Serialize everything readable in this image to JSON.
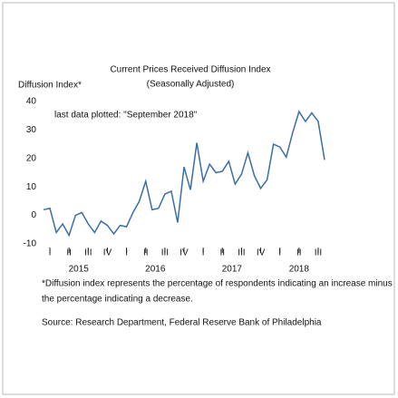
{
  "chart_data": {
    "type": "line",
    "title": "Current Prices Received Diffusion Index",
    "subtitle": "(Seasonally Adjusted)",
    "y_label": "Diffusion Index*",
    "annotation": "last data plotted: \"September 2018\"",
    "categories": [
      null,
      "I",
      null,
      null,
      "II",
      null,
      null,
      "III",
      null,
      null,
      "IV",
      null,
      null,
      "I",
      null,
      null,
      "II",
      null,
      null,
      "III",
      null,
      null,
      "IV",
      null,
      null,
      "I",
      null,
      null,
      "II",
      null,
      null,
      "III",
      null,
      null,
      "IV",
      null,
      null,
      "I",
      null,
      null,
      "II",
      null,
      null,
      "III",
      null
    ],
    "x_groups": [
      "2015",
      "2016",
      "2017",
      "2018"
    ],
    "series": [
      {
        "color": "#3a6ea5",
        "values": [
          2,
          2.5,
          -6,
          -3,
          -7,
          0,
          1,
          -3,
          -6,
          -2,
          -3.5,
          -6.5,
          -3.5,
          -4,
          1,
          5,
          12,
          2,
          2.5,
          7.5,
          8.5,
          -2.5,
          17,
          9,
          25.5,
          12,
          18,
          15,
          15.5,
          19,
          11,
          14.5,
          22,
          14,
          9.5,
          12.5,
          25,
          24,
          20.5,
          29,
          36.5,
          33,
          36,
          33,
          19.5
        ]
      }
    ],
    "ylim": [
      -10,
      40
    ],
    "yticks": [
      -10,
      0,
      10,
      20,
      30,
      40
    ],
    "footnote": [
      "*Diffusion index represents the percentage of respondents indicating an increase minus",
      "the percentage indicating a decrease."
    ],
    "source": "Source: Research Department, Federal Reserve Bank of Philadelphia"
  }
}
